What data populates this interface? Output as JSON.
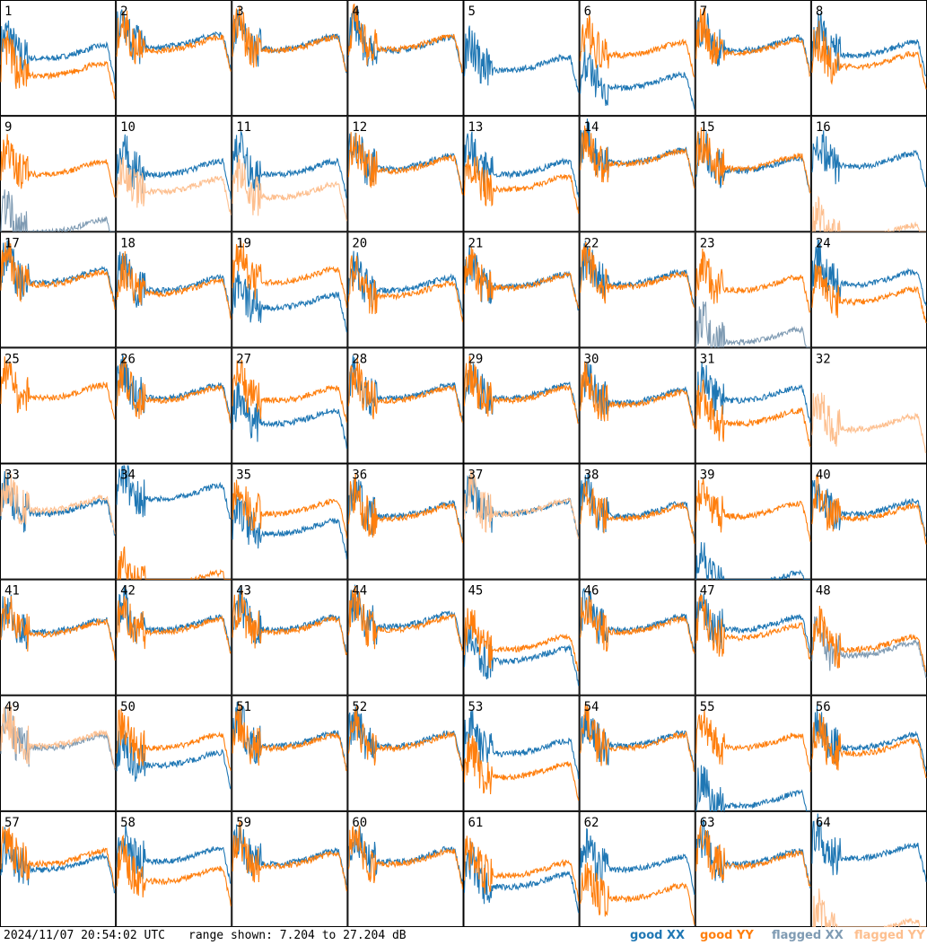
{
  "footer": {
    "timestamp": "2024/11/07 20:54:02 UTC",
    "range": "range shown: 7.204 to 27.204 dB"
  },
  "legend": {
    "good_xx": "good XX",
    "good_yy": "good YY",
    "flagged_xx": "flagged XX",
    "flagged_yy": "flagged YY"
  },
  "colors": {
    "good_xx": "#1f77b4",
    "good_yy": "#ff7f0e",
    "flagged_xx": "#7f9bb3",
    "flagged_yy": "#fdbf8f"
  },
  "chart_data": {
    "type": "line",
    "title": "",
    "xlabel": "",
    "ylabel": "",
    "ylim": [
      7.204,
      27.204
    ],
    "grid": "8x8 small multiples",
    "panels": [
      {
        "label": "1",
        "xx": "good",
        "yy": "good",
        "xx_level": 0.55,
        "yy_level": 0.4,
        "yy_dropout": true
      },
      {
        "label": "2",
        "xx": "good",
        "yy": "good",
        "xx_level": 0.65,
        "yy_level": 0.62
      },
      {
        "label": "3",
        "xx": "good",
        "yy": "good",
        "xx_level": 0.63,
        "yy_level": 0.62
      },
      {
        "label": "4",
        "xx": "good",
        "yy": "good",
        "xx_level": 0.62,
        "yy_level": 0.63
      },
      {
        "label": "5",
        "xx": "good",
        "yy": "none",
        "xx_level": 0.45,
        "yy_level": 0.0
      },
      {
        "label": "6",
        "xx": "good",
        "yy": "good",
        "xx_level": 0.3,
        "yy_level": 0.58
      },
      {
        "label": "7",
        "xx": "good",
        "yy": "good",
        "xx_level": 0.62,
        "yy_level": 0.6
      },
      {
        "label": "8",
        "xx": "good",
        "yy": "good",
        "xx_level": 0.58,
        "yy_level": 0.48
      },
      {
        "label": "9",
        "xx": "flagged",
        "yy": "good",
        "xx_level": 0.05,
        "yy_level": 0.55
      },
      {
        "label": "10",
        "xx": "good",
        "yy": "flagged",
        "xx_level": 0.55,
        "yy_level": 0.4
      },
      {
        "label": "11",
        "xx": "good",
        "yy": "flagged",
        "xx_level": 0.55,
        "yy_level": 0.35
      },
      {
        "label": "12",
        "xx": "good",
        "yy": "good",
        "xx_level": 0.6,
        "yy_level": 0.58
      },
      {
        "label": "13",
        "xx": "good",
        "yy": "good",
        "xx_level": 0.55,
        "yy_level": 0.42
      },
      {
        "label": "14",
        "xx": "good",
        "yy": "good",
        "xx_level": 0.65,
        "yy_level": 0.64
      },
      {
        "label": "15",
        "xx": "good",
        "yy": "good",
        "xx_level": 0.58,
        "yy_level": 0.6
      },
      {
        "label": "16",
        "xx": "good",
        "yy": "flagged",
        "xx_level": 0.62,
        "yy_level": 0.0
      },
      {
        "label": "17",
        "xx": "good",
        "yy": "good",
        "xx_level": 0.62,
        "yy_level": 0.6
      },
      {
        "label": "18",
        "xx": "good",
        "yy": "good",
        "xx_level": 0.55,
        "yy_level": 0.52
      },
      {
        "label": "19",
        "xx": "good",
        "yy": "good",
        "xx_level": 0.4,
        "yy_level": 0.62
      },
      {
        "label": "20",
        "xx": "good",
        "yy": "good",
        "xx_level": 0.55,
        "yy_level": 0.5
      },
      {
        "label": "21",
        "xx": "good",
        "yy": "good",
        "xx_level": 0.58,
        "yy_level": 0.57
      },
      {
        "label": "22",
        "xx": "good",
        "yy": "good",
        "xx_level": 0.6,
        "yy_level": 0.58
      },
      {
        "label": "23",
        "xx": "flagged",
        "yy": "good",
        "xx_level": 0.1,
        "yy_level": 0.55
      },
      {
        "label": "24",
        "xx": "good",
        "yy": "good",
        "xx_level": 0.6,
        "yy_level": 0.45
      },
      {
        "label": "25",
        "xx": "none",
        "yy": "good",
        "xx_level": 0.0,
        "yy_level": 0.62
      },
      {
        "label": "26",
        "xx": "good",
        "yy": "good",
        "xx_level": 0.62,
        "yy_level": 0.6
      },
      {
        "label": "27",
        "xx": "good",
        "yy": "good",
        "xx_level": 0.4,
        "yy_level": 0.6
      },
      {
        "label": "28",
        "xx": "good",
        "yy": "good",
        "xx_level": 0.62,
        "yy_level": 0.6
      },
      {
        "label": "29",
        "xx": "good",
        "yy": "good",
        "xx_level": 0.62,
        "yy_level": 0.6
      },
      {
        "label": "30",
        "xx": "good",
        "yy": "good",
        "xx_level": 0.58,
        "yy_level": 0.56
      },
      {
        "label": "31",
        "xx": "good",
        "yy": "good",
        "xx_level": 0.6,
        "yy_level": 0.4
      },
      {
        "label": "32",
        "xx": "none",
        "yy": "flagged",
        "xx_level": 0.0,
        "yy_level": 0.35
      },
      {
        "label": "33",
        "xx": "good",
        "yy": "flagged",
        "xx_level": 0.62,
        "yy_level": 0.65
      },
      {
        "label": "34",
        "xx": "good",
        "yy": "good",
        "xx_level": 0.75,
        "yy_level": 0.0
      },
      {
        "label": "35",
        "xx": "good",
        "yy": "good",
        "xx_level": 0.45,
        "yy_level": 0.62
      },
      {
        "label": "36",
        "xx": "good",
        "yy": "good",
        "xx_level": 0.6,
        "yy_level": 0.58
      },
      {
        "label": "37",
        "xx": "good",
        "yy": "flagged",
        "xx_level": 0.62,
        "yy_level": 0.62
      },
      {
        "label": "38",
        "xx": "good",
        "yy": "good",
        "xx_level": 0.6,
        "yy_level": 0.58
      },
      {
        "label": "39",
        "xx": "good",
        "yy": "good",
        "xx_level": 0.0,
        "yy_level": 0.6
      },
      {
        "label": "40",
        "xx": "good",
        "yy": "good",
        "xx_level": 0.62,
        "yy_level": 0.58
      },
      {
        "label": "41",
        "xx": "good",
        "yy": "good",
        "xx_level": 0.6,
        "yy_level": 0.58
      },
      {
        "label": "42",
        "xx": "good",
        "yy": "good",
        "xx_level": 0.62,
        "yy_level": 0.6
      },
      {
        "label": "43",
        "xx": "good",
        "yy": "good",
        "xx_level": 0.62,
        "yy_level": 0.6
      },
      {
        "label": "44",
        "xx": "good",
        "yy": "good",
        "xx_level": 0.65,
        "yy_level": 0.62
      },
      {
        "label": "45",
        "xx": "good",
        "yy": "good",
        "xx_level": 0.35,
        "yy_level": 0.45
      },
      {
        "label": "46",
        "xx": "good",
        "yy": "good",
        "xx_level": 0.62,
        "yy_level": 0.6
      },
      {
        "label": "47",
        "xx": "good",
        "yy": "good",
        "xx_level": 0.62,
        "yy_level": 0.55
      },
      {
        "label": "48",
        "xx": "flagged",
        "yy": "good",
        "xx_level": 0.4,
        "yy_level": 0.45
      },
      {
        "label": "49",
        "xx": "flagged",
        "yy": "flagged",
        "xx_level": 0.6,
        "yy_level": 0.62
      },
      {
        "label": "50",
        "xx": "good",
        "yy": "good",
        "xx_level": 0.45,
        "yy_level": 0.6
      },
      {
        "label": "51",
        "xx": "good",
        "yy": "good",
        "xx_level": 0.62,
        "yy_level": 0.6
      },
      {
        "label": "52",
        "xx": "good",
        "yy": "good",
        "xx_level": 0.62,
        "yy_level": 0.6
      },
      {
        "label": "53",
        "xx": "good",
        "yy": "good",
        "xx_level": 0.55,
        "yy_level": 0.35
      },
      {
        "label": "54",
        "xx": "good",
        "yy": "good",
        "xx_level": 0.62,
        "yy_level": 0.6
      },
      {
        "label": "55",
        "xx": "good",
        "yy": "good",
        "xx_level": 0.1,
        "yy_level": 0.6
      },
      {
        "label": "56",
        "xx": "good",
        "yy": "good",
        "xx_level": 0.6,
        "yy_level": 0.55
      },
      {
        "label": "57",
        "xx": "good",
        "yy": "good",
        "xx_level": 0.55,
        "yy_level": 0.6
      },
      {
        "label": "58",
        "xx": "good",
        "yy": "good",
        "xx_level": 0.62,
        "yy_level": 0.45
      },
      {
        "label": "59",
        "xx": "good",
        "yy": "good",
        "xx_level": 0.6,
        "yy_level": 0.58
      },
      {
        "label": "60",
        "xx": "good",
        "yy": "good",
        "xx_level": 0.62,
        "yy_level": 0.6
      },
      {
        "label": "61",
        "xx": "good",
        "yy": "good",
        "xx_level": 0.4,
        "yy_level": 0.5
      },
      {
        "label": "62",
        "xx": "good",
        "yy": "good",
        "xx_level": 0.55,
        "yy_level": 0.3
      },
      {
        "label": "63",
        "xx": "good",
        "yy": "good",
        "xx_level": 0.6,
        "yy_level": 0.58
      },
      {
        "label": "64",
        "xx": "good",
        "yy": "flagged",
        "xx_level": 0.65,
        "yy_level": 0.0
      }
    ]
  }
}
